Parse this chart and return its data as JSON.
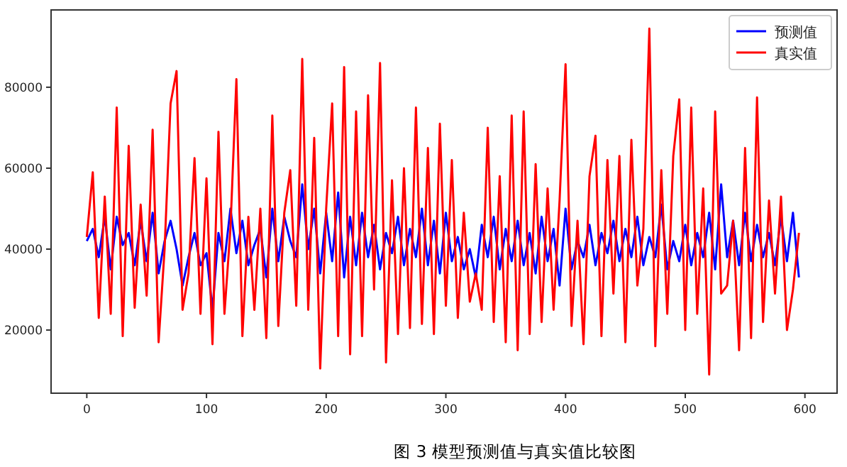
{
  "chart_data": {
    "type": "line",
    "annotations": [
      "图 3 模型预测值与真实值比较图"
    ],
    "legend": "top right",
    "xlim": [
      -29.85,
      626.85
    ],
    "ylim": [
      4400,
      99100
    ],
    "xticks": [
      0,
      100,
      200,
      300,
      400,
      500,
      600
    ],
    "yticks": [
      20000,
      40000,
      60000,
      80000
    ],
    "x": [
      0,
      5,
      10,
      15,
      20,
      25,
      30,
      35,
      40,
      45,
      50,
      55,
      60,
      65,
      70,
      75,
      80,
      85,
      90,
      95,
      100,
      105,
      110,
      115,
      120,
      125,
      130,
      135,
      140,
      145,
      150,
      155,
      160,
      165,
      170,
      175,
      180,
      185,
      190,
      195,
      200,
      205,
      210,
      215,
      220,
      225,
      230,
      235,
      240,
      245,
      250,
      255,
      260,
      265,
      270,
      275,
      280,
      285,
      290,
      295,
      300,
      305,
      310,
      315,
      320,
      325,
      330,
      335,
      340,
      345,
      350,
      355,
      360,
      365,
      370,
      375,
      380,
      385,
      390,
      395,
      400,
      405,
      410,
      415,
      420,
      425,
      430,
      435,
      440,
      445,
      450,
      455,
      460,
      465,
      470,
      475,
      480,
      485,
      490,
      495,
      500,
      505,
      510,
      515,
      520,
      525,
      530,
      535,
      540,
      545,
      550,
      555,
      560,
      565,
      570,
      575,
      580,
      585,
      590,
      595
    ],
    "series": [
      {
        "name": "预测值",
        "color": "#0000ff",
        "values": [
          42000,
          45000,
          38000,
          48000,
          35000,
          48000,
          41000,
          44000,
          36000,
          47000,
          37000,
          49000,
          34000,
          42000,
          47000,
          40000,
          31000,
          38000,
          44000,
          36000,
          39000,
          25000,
          44000,
          37000,
          50000,
          39000,
          47000,
          36000,
          41000,
          45000,
          33000,
          50000,
          37000,
          48000,
          42000,
          38000,
          56000,
          40000,
          50000,
          34000,
          49000,
          37000,
          54000,
          33000,
          48000,
          36000,
          49000,
          38000,
          46000,
          35000,
          44000,
          39000,
          48000,
          36000,
          45000,
          38000,
          50000,
          36000,
          47000,
          34000,
          49000,
          37000,
          43000,
          35000,
          40000,
          33000,
          46000,
          38000,
          48000,
          35000,
          45000,
          37000,
          47000,
          36000,
          44000,
          34000,
          48000,
          37000,
          45000,
          31000,
          50000,
          35000,
          42000,
          38000,
          46000,
          36000,
          44000,
          39000,
          47000,
          37000,
          45000,
          38000,
          48000,
          36000,
          43000,
          38000,
          51000,
          35000,
          42000,
          37000,
          46000,
          36000,
          44000,
          38000,
          49000,
          35000,
          56000,
          38000,
          47000,
          36000,
          49000,
          37000,
          46000,
          38000,
          44000,
          36000,
          48000,
          37000,
          49000,
          33000
        ]
      },
      {
        "name": "真实值",
        "color": "#ff0000",
        "values": [
          43000,
          59000,
          23000,
          53000,
          24000,
          75000,
          18500,
          65500,
          25500,
          51000,
          28500,
          69500,
          17000,
          40000,
          76000,
          84000,
          25000,
          34000,
          62500,
          24000,
          57500,
          16500,
          69000,
          24000,
          45000,
          82000,
          18500,
          48000,
          25000,
          50000,
          18000,
          73000,
          21000,
          49000,
          59500,
          26000,
          87000,
          25000,
          67500,
          10500,
          50000,
          76000,
          18500,
          85000,
          14000,
          74000,
          18500,
          78000,
          30000,
          86000,
          12000,
          57000,
          19000,
          60000,
          20500,
          75000,
          21500,
          65000,
          19000,
          71000,
          26000,
          62000,
          23000,
          49000,
          27000,
          34000,
          25000,
          70000,
          22000,
          58000,
          17000,
          73000,
          15000,
          74000,
          19000,
          61000,
          22000,
          55000,
          25000,
          52000,
          85700,
          21000,
          47000,
          16500,
          58000,
          68000,
          18500,
          62000,
          29000,
          63000,
          17000,
          67000,
          31000,
          45000,
          94500,
          16000,
          59500,
          24000,
          63000,
          77000,
          20000,
          75000,
          24000,
          55000,
          9000,
          74000,
          29000,
          31000,
          47000,
          15000,
          65000,
          18000,
          77500,
          22000,
          52000,
          29000,
          53000,
          20000,
          30000,
          44000
        ]
      }
    ]
  }
}
